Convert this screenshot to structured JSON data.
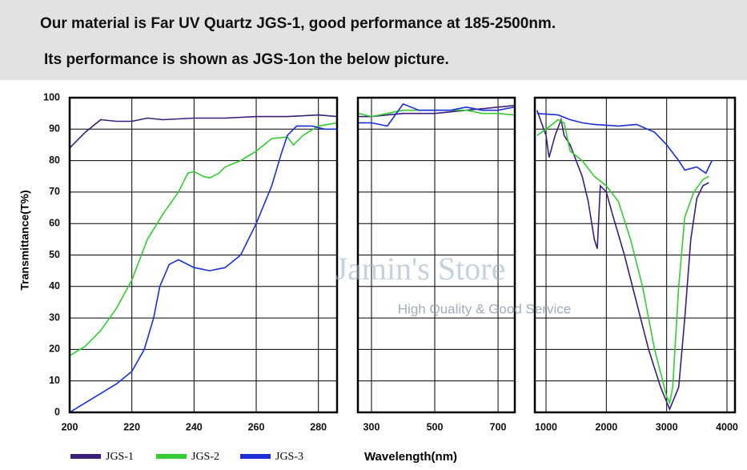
{
  "header": {
    "line1": "Our material is Far UV Quartz JGS-1, good performance at 185-2500nm.",
    "line2": "Its performance is shown as JGS-1on the below picture."
  },
  "watermark": {
    "title": "Jamin's Store",
    "subtitle": "High Quality & Good Service"
  },
  "chart_data": {
    "type": "line",
    "ylabel": "Transmittance(T%)",
    "xlabel": "Wavelength(nm)",
    "ylim": [
      0,
      100
    ],
    "yticks": [
      0,
      10,
      20,
      30,
      40,
      50,
      60,
      70,
      80,
      90,
      100
    ],
    "grid": true,
    "series": [
      {
        "name": "JGS-1",
        "color": "#3a1f7a"
      },
      {
        "name": "JGS-2",
        "color": "#33cc33"
      },
      {
        "name": "JGS-3",
        "color": "#1a2fd6"
      }
    ],
    "panels": [
      {
        "xlim": [
          200,
          286
        ],
        "xticks": [
          200,
          220,
          240,
          260,
          280
        ],
        "series": [
          {
            "x": [
              200,
              205,
              210,
              215,
              220,
              225,
              230,
              240,
              250,
              260,
              270,
              280,
              286
            ],
            "values": [
              84,
              89,
              93,
              92.5,
              92.5,
              93.5,
              93,
              93.5,
              93.5,
              94,
              94,
              94.5,
              94
            ]
          },
          {
            "x": [
              200,
              205,
              210,
              215,
              220,
              225,
              230,
              235,
              238,
              240,
              243,
              245,
              248,
              250,
              255,
              260,
              265,
              270,
              272,
              275,
              280,
              286
            ],
            "values": [
              18,
              21,
              26,
              33,
              42,
              55,
              63,
              70,
              76,
              76.5,
              75,
              74.5,
              76,
              78,
              80,
              83,
              87,
              87.5,
              85,
              88,
              91,
              92
            ]
          },
          {
            "x": [
              200,
              205,
              210,
              215,
              220,
              224,
              227,
              229,
              232,
              235,
              240,
              245,
              250,
              255,
              260,
              265,
              268,
              270,
              273,
              278,
              282,
              286
            ],
            "values": [
              0,
              3,
              6,
              9,
              13,
              20,
              30,
              40,
              47,
              48.5,
              46,
              45,
              46,
              50,
              60,
              72,
              82,
              88,
              91,
              91,
              90,
              90
            ]
          }
        ]
      },
      {
        "xlim": [
          257,
          753
        ],
        "xticks": [
          300,
          500,
          700
        ],
        "series": [
          {
            "x": [
              260,
              300,
              350,
              400,
              450,
              500,
              550,
              600,
              650,
              700,
              750
            ],
            "values": [
              94,
              94,
              94.5,
              95,
              95,
              95,
              95.5,
              96,
              96.5,
              97,
              97.5
            ]
          },
          {
            "x": [
              260,
              300,
              350,
              400,
              450,
              500,
              550,
              600,
              650,
              700,
              750
            ],
            "values": [
              95,
              94,
              95,
              96,
              96,
              96,
              96,
              96,
              95,
              95,
              94.5
            ]
          },
          {
            "x": [
              260,
              300,
              350,
              400,
              450,
              500,
              550,
              600,
              650,
              700,
              750
            ],
            "values": [
              92,
              92,
              91,
              98,
              96,
              96,
              96,
              97,
              96,
              96,
              97
            ]
          }
        ]
      },
      {
        "xlim": [
          814,
          4133
        ],
        "xticks": [
          1000,
          2000,
          3000,
          4000
        ],
        "series": [
          {
            "x": [
              850,
              1000,
              1050,
              1150,
              1250,
              1300,
              1400,
              1600,
              1700,
              1800,
              1850,
              1900,
              2000,
              2100,
              2300,
              2500,
              2700,
              2900,
              3050,
              3200,
              3300,
              3400,
              3500,
              3600,
              3700
            ],
            "values": [
              96,
              88,
              81,
              88,
              93,
              88,
              85,
              75,
              67,
              55,
              52,
              72,
              70,
              63,
              50,
              35,
              20,
              8,
              1,
              8,
              30,
              55,
              68,
              72,
              73
            ]
          },
          {
            "x": [
              850,
              1000,
              1200,
              1300,
              1400,
              1600,
              1800,
              2000,
              2200,
              2400,
              2600,
              2800,
              3000,
              3050,
              3100,
              3200,
              3300,
              3450,
              3600,
              3700
            ],
            "values": [
              88,
              90,
              93,
              92,
              83,
              80,
              75,
              72,
              67,
              55,
              40,
              20,
              5,
              3,
              8,
              40,
              62,
              70,
              74,
              75
            ]
          },
          {
            "x": [
              850,
              1200,
              1400,
              1600,
              1800,
              2200,
              2500,
              2800,
              3000,
              3200,
              3300,
              3500,
              3650,
              3750
            ],
            "values": [
              95,
              94.5,
              93,
              92,
              91.5,
              91,
              91.5,
              89,
              85,
              80,
              77,
              78,
              76,
              80
            ]
          }
        ]
      }
    ]
  }
}
